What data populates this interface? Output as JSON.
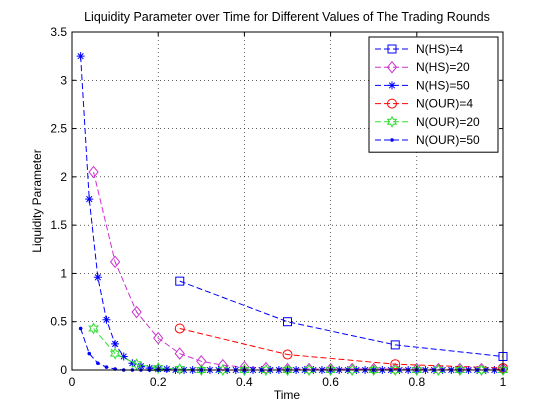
{
  "chart_data": {
    "type": "line",
    "title": "Liquidity Parameter over Time for Different Values of The Trading Rounds",
    "xlabel": "Time",
    "ylabel": "Liquidity Parameter",
    "xlim": [
      0,
      1
    ],
    "ylim": [
      0,
      3.5
    ],
    "xticks": [
      0,
      0.2,
      0.4,
      0.6,
      0.8,
      1
    ],
    "xtick_labels": [
      "0",
      "0.2",
      "0.4",
      "0.6",
      "0.8",
      "1"
    ],
    "yticks": [
      0,
      0.5,
      1,
      1.5,
      2,
      2.5,
      3,
      3.5
    ],
    "ytick_labels": [
      "0",
      "0.5",
      "1",
      "1.5",
      "2",
      "2.5",
      "3",
      "3.5"
    ],
    "grid": true,
    "legend_position": "top-right",
    "series": [
      {
        "name": "N(HS)=4",
        "color": "#0000ff",
        "marker": "square",
        "x": [
          0.25,
          0.5,
          0.75,
          1.0
        ],
        "y": [
          0.92,
          0.5,
          0.26,
          0.14
        ]
      },
      {
        "name": "N(HS)=20",
        "color": "#cc33cc",
        "marker": "diamond",
        "x": [
          0.05,
          0.1,
          0.15,
          0.2,
          0.25,
          0.3,
          0.35,
          0.4,
          0.45,
          0.5,
          0.55,
          0.6,
          0.65,
          0.7,
          0.75,
          0.8,
          0.85,
          0.9,
          0.95,
          1.0
        ],
        "y": [
          2.05,
          1.12,
          0.6,
          0.33,
          0.17,
          0.09,
          0.05,
          0.03,
          0.02,
          0.01,
          0.01,
          0.01,
          0.01,
          0.01,
          0.01,
          0.01,
          0.01,
          0.01,
          0.01,
          0.01
        ]
      },
      {
        "name": "N(HS)=50",
        "color": "#0000ff",
        "marker": "asterisk",
        "x": [
          0.02,
          0.04,
          0.06,
          0.08,
          0.1,
          0.12,
          0.14,
          0.16,
          0.18,
          0.2,
          0.22,
          0.24,
          0.26,
          0.28,
          0.3,
          0.32,
          0.34,
          0.36,
          0.38,
          0.4,
          0.42,
          0.44,
          0.46,
          0.48,
          0.5,
          0.52,
          0.54,
          0.56,
          0.58,
          0.6,
          0.62,
          0.64,
          0.66,
          0.68,
          0.7,
          0.72,
          0.74,
          0.76,
          0.78,
          0.8,
          0.82,
          0.84,
          0.86,
          0.88,
          0.9,
          0.92,
          0.94,
          0.96,
          0.98,
          1.0
        ],
        "y": [
          3.25,
          1.77,
          0.96,
          0.52,
          0.27,
          0.14,
          0.07,
          0.04,
          0.02,
          0.01,
          0.01,
          0.0,
          0.0,
          0.0,
          0.0,
          0.0,
          0.0,
          0.0,
          0.0,
          0.0,
          0.0,
          0.0,
          0.0,
          0.0,
          0.0,
          0.0,
          0.0,
          0.0,
          0.0,
          0.0,
          0.0,
          0.0,
          0.0,
          0.0,
          0.0,
          0.0,
          0.0,
          0.0,
          0.0,
          0.0,
          0.0,
          0.0,
          0.0,
          0.0,
          0.0,
          0.0,
          0.0,
          0.0,
          0.0,
          0.0
        ]
      },
      {
        "name": "N(OUR)=4",
        "color": "#ff0000",
        "marker": "circle",
        "x": [
          0.25,
          0.5,
          0.75,
          1.0
        ],
        "y": [
          0.43,
          0.16,
          0.06,
          0.02
        ]
      },
      {
        "name": "N(OUR)=20",
        "color": "#33dd33",
        "marker": "hexagram",
        "x": [
          0.05,
          0.1,
          0.15,
          0.2,
          0.25,
          0.3,
          0.35,
          0.4,
          0.45,
          0.5,
          0.55,
          0.6,
          0.65,
          0.7,
          0.75,
          0.8,
          0.85,
          0.9,
          0.95,
          1.0
        ],
        "y": [
          0.43,
          0.17,
          0.06,
          0.02,
          0.01,
          0.0,
          0.0,
          0.0,
          0.0,
          0.0,
          0.0,
          0.0,
          0.0,
          0.0,
          0.0,
          0.0,
          0.0,
          0.0,
          0.0,
          0.0
        ]
      },
      {
        "name": "N(OUR)=50",
        "color": "#0000ff",
        "marker": "point",
        "x": [
          0.02,
          0.04,
          0.06,
          0.08,
          0.1,
          0.12,
          0.14,
          0.16,
          0.18,
          0.2,
          0.22,
          0.24,
          0.26,
          0.28,
          0.3,
          0.32,
          0.34,
          0.36,
          0.38,
          0.4,
          0.42,
          0.44,
          0.46,
          0.48,
          0.5,
          0.52,
          0.54,
          0.56,
          0.58,
          0.6,
          0.62,
          0.64,
          0.66,
          0.68,
          0.7,
          0.72,
          0.74,
          0.76,
          0.78,
          0.8,
          0.82,
          0.84,
          0.86,
          0.88,
          0.9,
          0.92,
          0.94,
          0.96,
          0.98,
          1.0
        ],
        "y": [
          0.43,
          0.17,
          0.07,
          0.03,
          0.01,
          0.0,
          0.0,
          0.0,
          0.0,
          0.0,
          0.0,
          0.0,
          0.0,
          0.0,
          0.0,
          0.0,
          0.0,
          0.0,
          0.0,
          0.0,
          0.0,
          0.0,
          0.0,
          0.0,
          0.0,
          0.0,
          0.0,
          0.0,
          0.0,
          0.0,
          0.0,
          0.0,
          0.0,
          0.0,
          0.0,
          0.0,
          0.0,
          0.0,
          0.0,
          0.0,
          0.0,
          0.0,
          0.0,
          0.0,
          0.0,
          0.0,
          0.0,
          0.0,
          0.0,
          0.0
        ]
      }
    ]
  }
}
